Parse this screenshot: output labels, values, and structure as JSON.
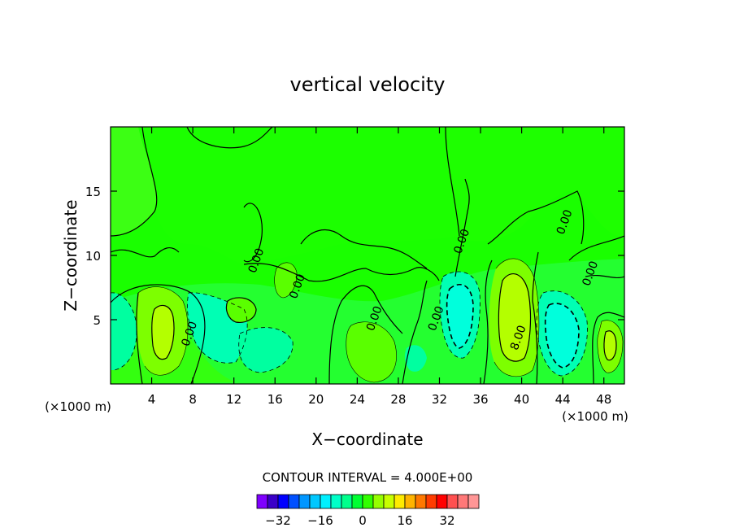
{
  "chart_data": {
    "type": "contour",
    "title": "vertical velocity",
    "xlabel": "X−coordinate",
    "ylabel": "Z−coordinate",
    "x_unit_left": "(×1000 m)",
    "x_unit_right": "(×1000 m)",
    "xlim": [
      0,
      50
    ],
    "ylim": [
      0,
      20
    ],
    "x_ticks": [
      "4",
      "8",
      "12",
      "16",
      "20",
      "24",
      "28",
      "32",
      "36",
      "40",
      "44",
      "48"
    ],
    "x_tick_values": [
      4,
      8,
      12,
      16,
      20,
      24,
      28,
      32,
      36,
      40,
      44,
      48
    ],
    "y_ticks": [
      "5",
      "10",
      "15"
    ],
    "y_tick_values": [
      5,
      10,
      15
    ],
    "contour_interval_text": "CONTOUR INTERVAL = 4.000E+00",
    "contour_interval": 4,
    "contour_labels": [
      {
        "text": "0.00",
        "x": 8.0,
        "y": 3.8
      },
      {
        "text": "0.00",
        "x": 14.5,
        "y": 9.5
      },
      {
        "text": "0.00",
        "x": 18.5,
        "y": 7.5
      },
      {
        "text": "0.00",
        "x": 26.0,
        "y": 5.0
      },
      {
        "text": "0.00",
        "x": 32.0,
        "y": 5.0
      },
      {
        "text": "0.00",
        "x": 34.5,
        "y": 11.0
      },
      {
        "text": "0.00",
        "x": 44.5,
        "y": 12.5
      },
      {
        "text": "0.00",
        "x": 47.0,
        "y": 8.5
      },
      {
        "text": "8.00",
        "x": 40.0,
        "y": 3.5
      }
    ],
    "colorbar": {
      "tick_labels": [
        "−32",
        "−16",
        "0",
        "16",
        "32"
      ],
      "tick_values": [
        -32,
        -16,
        0,
        16,
        32
      ],
      "colors": [
        "#7f00ff",
        "#3a00c8",
        "#0000ff",
        "#0050ff",
        "#0096ff",
        "#00c8ff",
        "#00f0ff",
        "#00ffc8",
        "#00ff8c",
        "#00ff32",
        "#32ff00",
        "#96ff00",
        "#c8ff00",
        "#ffeb00",
        "#ffb400",
        "#ff7800",
        "#ff3c00",
        "#ff0000",
        "#ff5050",
        "#ff7878",
        "#ff9696"
      ]
    },
    "fields": {
      "background_color": "#1aff00",
      "updraft_regions": [
        {
          "x": 5.3,
          "y": 4.2,
          "peak": 12
        },
        {
          "x": 39.5,
          "y": 5.0,
          "peak": 12
        },
        {
          "x": 48.5,
          "y": 3.0,
          "peak": 8
        },
        {
          "x": 26.0,
          "y": 3.0,
          "peak": 4
        }
      ],
      "downdraft_regions": [
        {
          "x": 1.0,
          "y": 4.0,
          "peak": -4
        },
        {
          "x": 10.5,
          "y": 5.0,
          "peak": -4
        },
        {
          "x": 15.0,
          "y": 2.5,
          "peak": -4
        },
        {
          "x": 30.0,
          "y": 2.0,
          "peak": -4
        },
        {
          "x": 34.0,
          "y": 5.5,
          "peak": -8
        },
        {
          "x": 43.5,
          "y": 4.0,
          "peak": -8
        }
      ]
    }
  }
}
